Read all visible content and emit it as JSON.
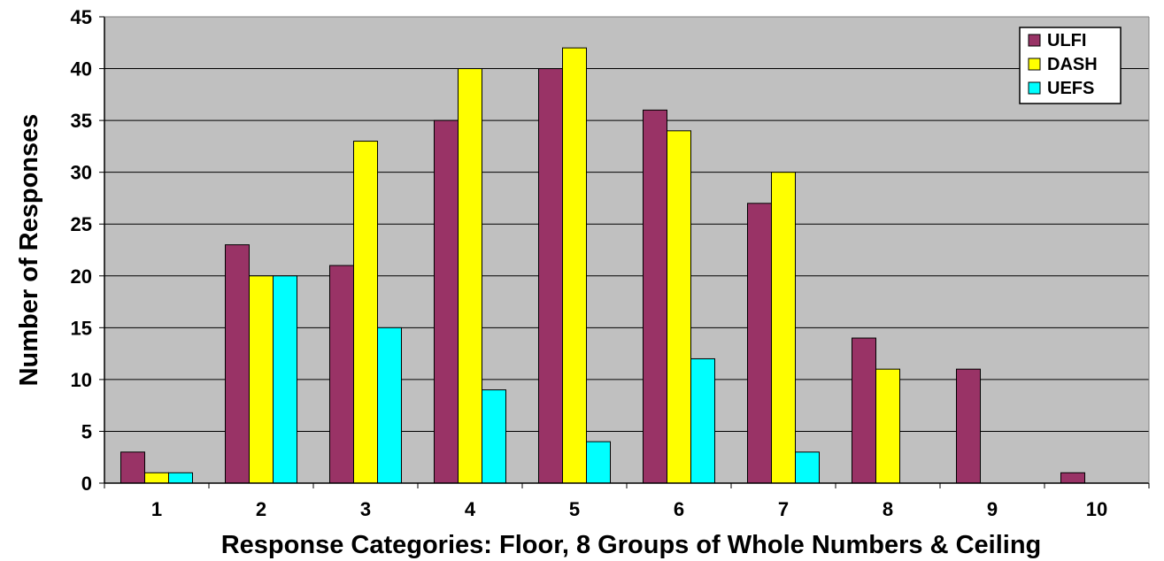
{
  "chart_data": {
    "type": "bar",
    "categories": [
      "1",
      "2",
      "3",
      "4",
      "5",
      "6",
      "7",
      "8",
      "9",
      "10"
    ],
    "series": [
      {
        "name": "ULFI",
        "color": "#993366",
        "values": [
          3,
          23,
          21,
          35,
          40,
          36,
          27,
          14,
          11,
          1
        ]
      },
      {
        "name": "DASH",
        "color": "#ffff00",
        "values": [
          1,
          20,
          33,
          40,
          42,
          34,
          30,
          11,
          0,
          0
        ]
      },
      {
        "name": "UEFS",
        "color": "#00ffff",
        "values": [
          1,
          20,
          15,
          9,
          4,
          12,
          3,
          0,
          0,
          0
        ]
      }
    ],
    "xlabel": "Response Categories: Floor, 8 Groups of Whole Numbers & Ceiling",
    "ylabel": "Number of Responses",
    "ylim": [
      0,
      45
    ],
    "yticks": [
      0,
      5,
      10,
      15,
      20,
      25,
      30,
      35,
      40,
      45
    ],
    "grid": true,
    "legend_position": "top-right",
    "plot_background": "#c0c0c0"
  }
}
